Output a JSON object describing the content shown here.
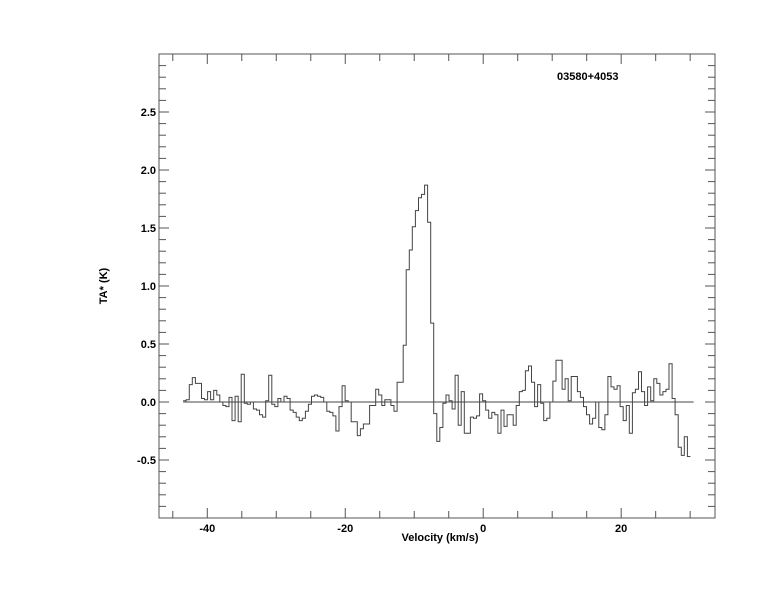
{
  "chart_data": {
    "type": "line",
    "style": "step",
    "title": "03580+4053",
    "xlabel": "Velocity (km/s)",
    "ylabel": "TA* (K)",
    "xlim": [
      -47,
      33.6
    ],
    "ylim": [
      -1.0,
      3.0
    ],
    "xticks": [
      -40,
      -20,
      0,
      20
    ],
    "xtick_labels": [
      "-40",
      "-20",
      "0",
      "20"
    ],
    "x_minor_step": 5,
    "yticks": [
      -0.5,
      0.0,
      0.5,
      1.0,
      1.5,
      2.0,
      2.5
    ],
    "ytick_labels": [
      "-0.5",
      "0.0",
      "0.5",
      "1.0",
      "1.5",
      "2.0",
      "2.5"
    ],
    "y_minor_step": 0.1,
    "grid": false,
    "baseline": {
      "y": 0,
      "x_range": [
        -43.5,
        30.5
      ]
    },
    "velocity_start": -43.5,
    "channel_width": 0.443,
    "values": [
      0.01,
      0.02,
      0.15,
      0.21,
      0.16,
      0.16,
      0.03,
      0.02,
      0.09,
      0.02,
      0.1,
      0.06,
      0.0,
      -0.03,
      -0.04,
      0.04,
      -0.16,
      0.05,
      -0.17,
      0.24,
      -0.01,
      -0.02,
      0.0,
      -0.06,
      -0.07,
      -0.11,
      -0.13,
      0.01,
      0.23,
      -0.02,
      -0.04,
      0.03,
      0.0,
      0.05,
      0.03,
      -0.07,
      -0.09,
      -0.13,
      -0.16,
      -0.14,
      -0.08,
      -0.02,
      0.05,
      0.06,
      0.05,
      0.04,
      0.0,
      -0.08,
      -0.09,
      -0.12,
      -0.25,
      -0.04,
      0.14,
      0.01,
      0.0,
      -0.17,
      -0.17,
      -0.29,
      -0.23,
      -0.19,
      -0.19,
      -0.03,
      -0.03,
      0.11,
      0.06,
      -0.03,
      0.02,
      0.02,
      -0.03,
      -0.08,
      0.17,
      0.17,
      0.49,
      1.14,
      1.31,
      1.51,
      1.65,
      1.76,
      1.79,
      1.87,
      1.55,
      0.68,
      -0.1,
      -0.34,
      -0.22,
      -0.01,
      0.06,
      0.01,
      -0.06,
      0.23,
      -0.2,
      0.09,
      -0.27,
      -0.27,
      -0.13,
      -0.14,
      -0.12,
      0.07,
      0.01,
      -0.07,
      -0.14,
      -0.09,
      -0.11,
      -0.27,
      -0.07,
      -0.21,
      -0.11,
      -0.11,
      -0.2,
      -0.03,
      0.09,
      0.1,
      0.27,
      0.31,
      0.17,
      -0.04,
      0.15,
      -0.01,
      -0.16,
      -0.14,
      0.0,
      0.18,
      0.36,
      0.36,
      0.11,
      0.2,
      0.01,
      0.22,
      0.22,
      0.09,
      0.04,
      -0.04,
      -0.11,
      -0.19,
      -0.14,
      0.0,
      -0.22,
      -0.24,
      -0.11,
      0.22,
      0.13,
      0.11,
      0.14,
      -0.04,
      -0.16,
      -0.03,
      -0.27,
      0.08,
      0.11,
      0.26,
      0.09,
      -0.03,
      0.13,
      0.01,
      0.2,
      0.16,
      0.06,
      0.09,
      0.11,
      0.33,
      0.03,
      -0.11,
      -0.39,
      -0.46,
      -0.3,
      -0.47
    ],
    "line_color": "#444444",
    "axis_color": "#555555"
  }
}
